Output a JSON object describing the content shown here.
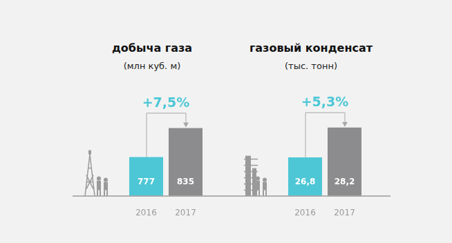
{
  "chart_data": [
    {
      "type": "bar",
      "title": "добыча газа",
      "subtitle": "(млн куб. м)",
      "annotation": "+7,5%",
      "categories": [
        "2016",
        "2017"
      ],
      "values": [
        777,
        835
      ],
      "colors": [
        "#4dc7d6",
        "#8c8c8e"
      ],
      "ylim": [
        700,
        870
      ],
      "yticks": [
        700,
        870
      ],
      "grid": false,
      "data_labels": true,
      "tick_labels": "x"
    },
    {
      "type": "bar",
      "title": "газовый конденсат",
      "subtitle": "(тыс. тонн)",
      "annotation": "+5,3%",
      "categories": [
        "2016",
        "2017"
      ],
      "values": [
        26.8,
        28.2
      ],
      "value_labels": [
        "26,8",
        "28,2"
      ],
      "colors": [
        "#4dc7d6",
        "#8c8c8e"
      ],
      "ylim": [
        25,
        29
      ],
      "yticks": [
        25,
        29
      ],
      "grid": false,
      "data_labels": true,
      "tick_labels": "x"
    }
  ]
}
